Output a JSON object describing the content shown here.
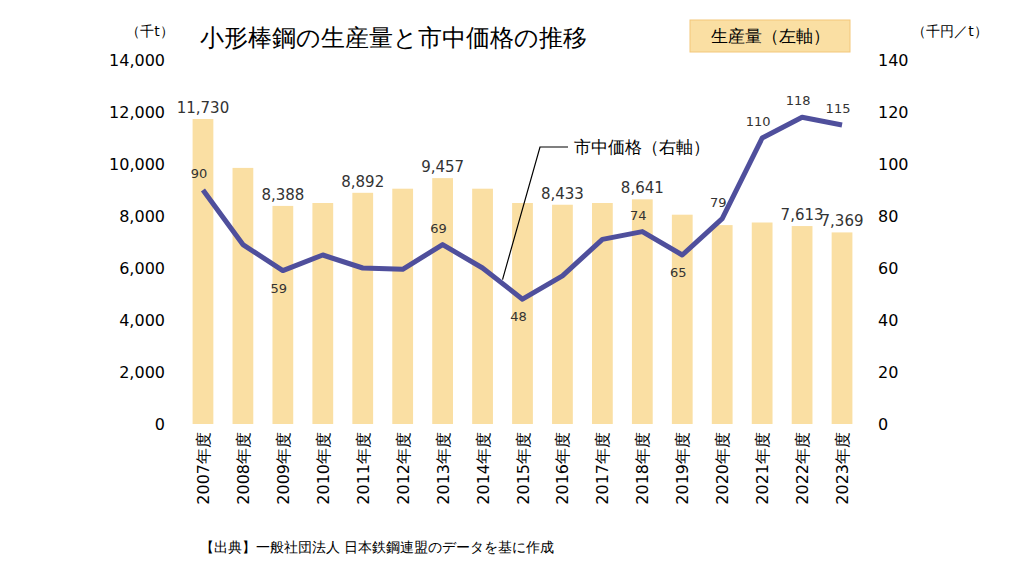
{
  "chart_data": {
    "type": "bar",
    "title": "小形棒鋼の生産量と市中価格の推移",
    "ylabel": "（千t）",
    "y2label": "（千円／t）",
    "source": "【出典】一般社団法人 日本鉄鋼連盟のデータを基に作成",
    "categories": [
      "2007年度",
      "2008年度",
      "2009年度",
      "2010年度",
      "2011年度",
      "2012年度",
      "2013年度",
      "2014年度",
      "2015年度",
      "2016年度",
      "2017年度",
      "2018年度",
      "2019年度",
      "2020年度",
      "2021年度",
      "2022年度",
      "2023年度"
    ],
    "series": [
      {
        "name": "生産量（左軸）",
        "type": "bar",
        "color": "#fadfa3",
        "values": [
          11730,
          9850,
          8388,
          8500,
          8892,
          9050,
          9457,
          9050,
          8500,
          8433,
          8500,
          8641,
          8050,
          7650,
          7750,
          7613,
          7369
        ],
        "value_labels": [
          "11,730",
          null,
          "8,388",
          null,
          "8,892",
          null,
          "9,457",
          null,
          null,
          "8,433",
          null,
          "8,641",
          null,
          null,
          null,
          "7,613",
          "7,369"
        ]
      },
      {
        "name": "市中価格（右軸）",
        "type": "line",
        "color": "#4f4f9c",
        "axis": "y2",
        "values": [
          90,
          69,
          59,
          65,
          60,
          59.5,
          69,
          60,
          48,
          57,
          71,
          74,
          65,
          79,
          110,
          118,
          115
        ],
        "value_labels": [
          "90",
          null,
          "59",
          null,
          null,
          null,
          "69",
          null,
          "48",
          null,
          null,
          "74",
          "65",
          "79",
          "110",
          "118",
          "115"
        ]
      }
    ],
    "ylim": [
      0,
      14000
    ],
    "yticks": [
      0,
      {
        "value": 2000,
        "label": "2,000"
      },
      {
        "value": 4000,
        "label": "4,000"
      },
      {
        "value": 6000,
        "label": "6,000"
      },
      {
        "value": 8000,
        "label": "8,000"
      },
      {
        "value": 10000,
        "label": "10,000"
      },
      {
        "value": 12000,
        "label": "12,000"
      },
      {
        "value": 14000,
        "label": "14,000"
      }
    ],
    "y2lim": [
      0,
      140
    ],
    "y2ticks": [
      0,
      20,
      40,
      60,
      80,
      100,
      120,
      140
    ],
    "grid": false,
    "legend": "top-right",
    "data_labels": true
  }
}
